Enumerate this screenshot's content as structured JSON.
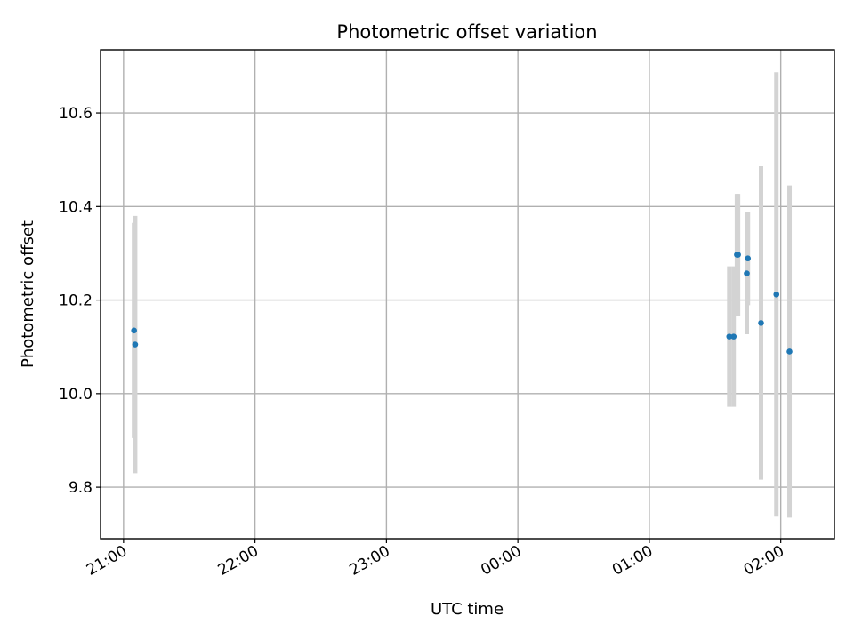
{
  "chart_data": {
    "type": "scatter",
    "title": "Photometric offset variation",
    "xlabel": "UTC time",
    "ylabel": "Photometric offset",
    "x_unit": "UTC",
    "x_ticks": [
      "21:00",
      "22:00",
      "23:00",
      "00:00",
      "01:00",
      "02:00"
    ],
    "x_tick_minutes": [
      0,
      60,
      120,
      180,
      240,
      300
    ],
    "xlim_minutes": [
      -10.5,
      324.5
    ],
    "y_ticks": [
      9.8,
      10.0,
      10.2,
      10.4,
      10.6
    ],
    "y_tick_labels": [
      "9.8",
      "10.0",
      "10.2",
      "10.4",
      "10.6"
    ],
    "ylim": [
      9.69,
      10.735
    ],
    "grid": true,
    "colors": {
      "point": "#1f77b4",
      "errorbar": "#d3d3d3",
      "grid": "#b0b0b0"
    },
    "points": [
      {
        "minutes": 4.8,
        "y": 10.135,
        "err": 0.23
      },
      {
        "minutes": 5.3,
        "y": 10.105,
        "err": 0.275
      },
      {
        "minutes": 276.5,
        "y": 10.122,
        "err": 0.15
      },
      {
        "minutes": 278.5,
        "y": 10.122,
        "err": 0.15
      },
      {
        "minutes": 280.0,
        "y": 10.297,
        "err": 0.13
      },
      {
        "minutes": 280.5,
        "y": 10.297,
        "err": 0.13
      },
      {
        "minutes": 284.5,
        "y": 10.257,
        "err": 0.13
      },
      {
        "minutes": 285.0,
        "y": 10.289,
        "err": 0.1
      },
      {
        "minutes": 291.0,
        "y": 10.151,
        "err": 0.335
      },
      {
        "minutes": 298.0,
        "y": 10.212,
        "err": 0.475
      },
      {
        "minutes": 304.0,
        "y": 10.09,
        "err": 0.355
      }
    ]
  }
}
